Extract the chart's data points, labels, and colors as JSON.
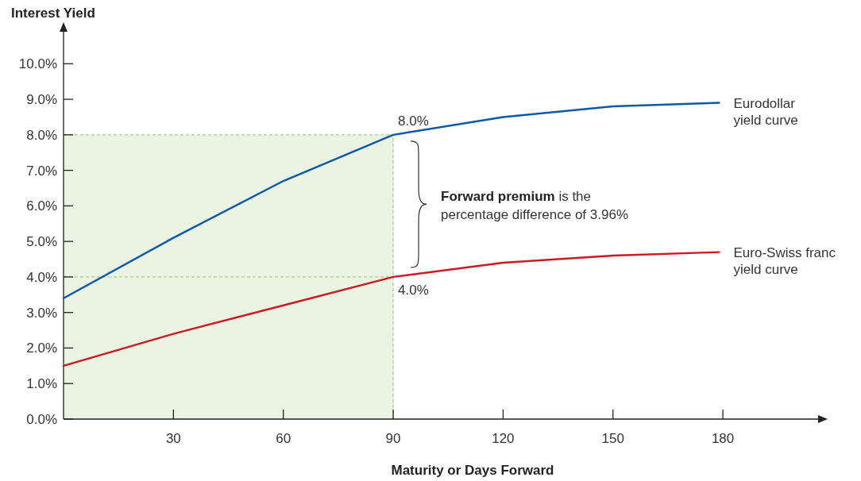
{
  "chart_data": {
    "type": "line",
    "xlabel": "Maturity or Days Forward",
    "ylabel": "Interest Yield",
    "xlim": [
      0,
      206
    ],
    "ylim": [
      0,
      10.9
    ],
    "xticks": [
      30,
      60,
      90,
      120,
      150,
      180
    ],
    "yticks": [
      {
        "value": 0,
        "label": "0.0%"
      },
      {
        "value": 1,
        "label": "1.0%"
      },
      {
        "value": 2,
        "label": "2.0%"
      },
      {
        "value": 3,
        "label": "3.0%"
      },
      {
        "value": 4,
        "label": "4.0%"
      },
      {
        "value": 5,
        "label": "5.0%"
      },
      {
        "value": 6,
        "label": "6.0%"
      },
      {
        "value": 7,
        "label": "7.0%"
      },
      {
        "value": 8,
        "label": "8.0%"
      },
      {
        "value": 9,
        "label": "9.0%"
      },
      {
        "value": 10,
        "label": "10.0%"
      }
    ],
    "x": [
      0,
      30,
      60,
      90,
      120,
      150,
      179
    ],
    "series": [
      {
        "name": "Eurodollar yield curve",
        "color": "#0a5aa8",
        "values": [
          3.4,
          5.1,
          6.7,
          8.0,
          8.5,
          8.8,
          8.9
        ]
      },
      {
        "name": "Euro-Swiss franc yield curve",
        "color": "#cc1a22",
        "values": [
          1.5,
          2.4,
          3.2,
          4.0,
          4.4,
          4.6,
          4.7
        ]
      }
    ],
    "bands": [
      {
        "axis": "x",
        "from": 0,
        "to": 90,
        "color": "#ebf3e3"
      }
    ],
    "ref_lines": [
      {
        "axis": "x",
        "value": 90,
        "color": "#9cc27a",
        "line_style": "dashed"
      },
      {
        "axis": "y",
        "value": 8,
        "color": "#9cc27a",
        "line_style": "dashed"
      },
      {
        "axis": "y",
        "value": 4,
        "color": "#9cc27a",
        "line_style": "dashed"
      }
    ],
    "annotations": [
      {
        "text": "8.0%",
        "x": 90,
        "y": 8
      },
      {
        "text": "4.0%",
        "x": 90,
        "y": 4
      },
      "Forward premium",
      "is the percentage difference of 3.96%"
    ],
    "grid": false,
    "marker": "none",
    "line_style": "solid"
  }
}
